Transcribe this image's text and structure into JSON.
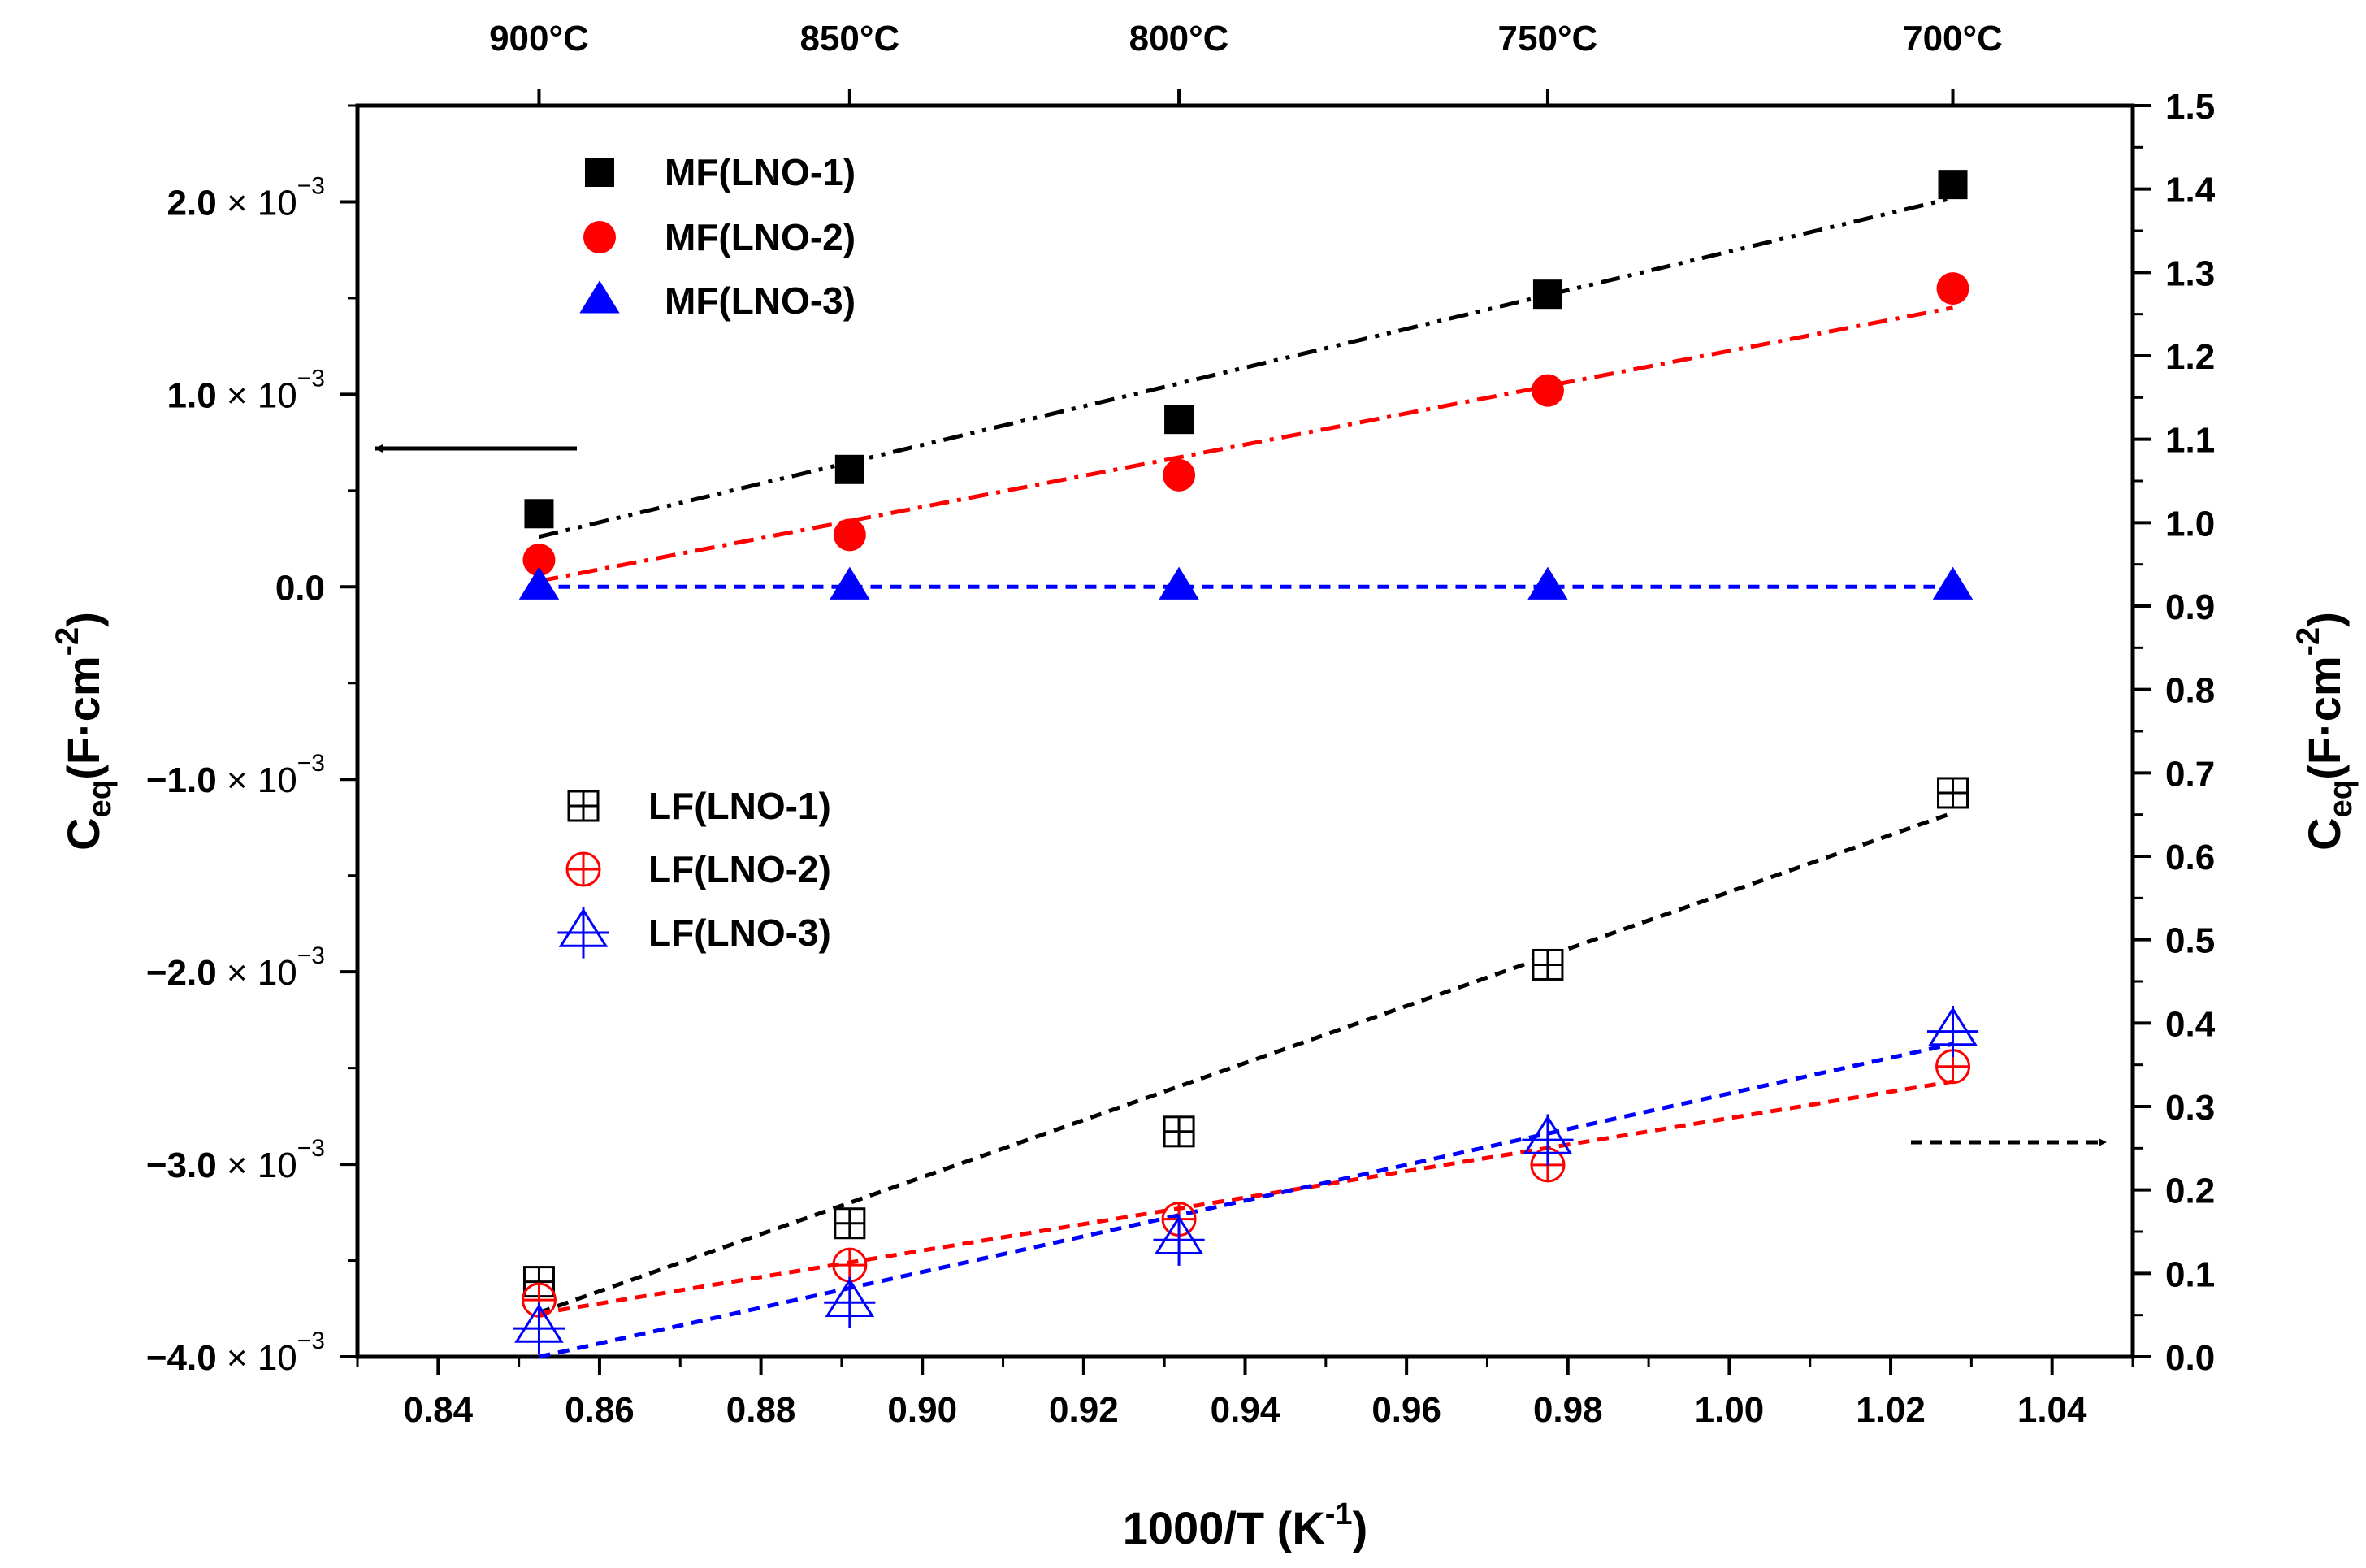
{
  "chart_data": {
    "type": "scatter",
    "x_axis": {
      "label": "1000/T",
      "unit_base": "K",
      "unit_exp": "-1",
      "range": [
        0.83,
        1.05
      ],
      "ticks": [
        "0.84",
        "0.86",
        "0.88",
        "0.90",
        "0.92",
        "0.94",
        "0.96",
        "0.98",
        "1.00",
        "1.02",
        "1.04"
      ]
    },
    "top_axis": {
      "ticks": [
        {
          "x": 0.8525,
          "label": "900°C"
        },
        {
          "x": 0.891,
          "label": "850°C"
        },
        {
          "x": 0.9318,
          "label": "800°C"
        },
        {
          "x": 0.9775,
          "label": "750°C"
        },
        {
          "x": 1.0277,
          "label": "700°C"
        }
      ]
    },
    "left_axis": {
      "label_main": "C",
      "label_sub": "eq",
      "label_unit": "(F·cm",
      "label_exp": "-2",
      "label_close": ")",
      "range": [
        -0.004,
        0.0025
      ],
      "ticks": [
        {
          "value": 0.002,
          "mantissa": "2.0",
          "times": "×",
          "base": "10",
          "exp": "−3"
        },
        {
          "value": 0.001,
          "mantissa": "1.0",
          "times": "×",
          "base": "10",
          "exp": "−3"
        },
        {
          "value": 0.0,
          "mantissa": "0.0"
        },
        {
          "value": -0.001,
          "mantissa": "−1.0",
          "times": "×",
          "base": "10",
          "exp": "−3"
        },
        {
          "value": -0.002,
          "mantissa": "−2.0",
          "times": "×",
          "base": "10",
          "exp": "−3"
        },
        {
          "value": -0.003,
          "mantissa": "−3.0",
          "times": "×",
          "base": "10",
          "exp": "−3"
        },
        {
          "value": -0.004,
          "mantissa": "−4.0",
          "times": "×",
          "base": "10",
          "exp": "−3"
        }
      ]
    },
    "right_axis": {
      "label_main": "C",
      "label_sub": "eq",
      "label_unit": "(F·cm",
      "label_exp": "-2",
      "label_close": ")",
      "range": [
        0.0,
        1.5
      ],
      "ticks": [
        "0.0",
        "0.1",
        "0.2",
        "0.3",
        "0.4",
        "0.5",
        "0.6",
        "0.7",
        "0.8",
        "0.9",
        "1.0",
        "1.1",
        "1.2",
        "1.3",
        "1.4",
        "1.5"
      ]
    },
    "series": [
      {
        "name": "MF(LNO-1)",
        "axis": "left",
        "marker": "square",
        "filled": true,
        "color": "#000000",
        "line": "dash-dot-dot",
        "x": [
          0.8525,
          0.891,
          0.9318,
          0.9775,
          1.0277
        ],
        "y": [
          0.00038,
          0.00061,
          0.00087,
          0.00152,
          0.00209
        ],
        "fit": [
          [
            0.8525,
            0.00026
          ],
          [
            1.0277,
            0.00202
          ]
        ]
      },
      {
        "name": "MF(LNO-2)",
        "axis": "left",
        "marker": "circle",
        "filled": true,
        "color": "#ff0000",
        "line": "dash-dot",
        "x": [
          0.8525,
          0.891,
          0.9318,
          0.9775,
          1.0277
        ],
        "y": [
          0.00014,
          0.00027,
          0.00058,
          0.00102,
          0.00155
        ],
        "fit": [
          [
            0.8525,
            3e-05
          ],
          [
            1.0277,
            0.00145
          ]
        ]
      },
      {
        "name": "MF(LNO-3)",
        "axis": "left",
        "marker": "triangle",
        "filled": true,
        "color": "#0000ff",
        "line": "dash",
        "x": [
          0.8525,
          0.891,
          0.9318,
          0.9775,
          1.0277
        ],
        "y": [
          0.0,
          0.0,
          0.0,
          0.0,
          0.0
        ],
        "fit": [
          [
            0.8525,
            0.0
          ],
          [
            1.0277,
            0.0
          ]
        ]
      },
      {
        "name": "LF(LNO-1)",
        "axis": "right",
        "marker": "square-cross",
        "filled": false,
        "color": "#000000",
        "line": "dash",
        "x": [
          0.8525,
          0.891,
          0.9318,
          0.9775,
          1.0277
        ],
        "y": [
          0.09,
          0.16,
          0.27,
          0.47,
          0.676
        ],
        "fit": [
          [
            0.8525,
            0.053
          ],
          [
            1.0277,
            0.652
          ]
        ]
      },
      {
        "name": "LF(LNO-2)",
        "axis": "right",
        "marker": "circle-cross",
        "filled": false,
        "color": "#ff0000",
        "line": "dash",
        "x": [
          0.8525,
          0.891,
          0.9318,
          0.9775,
          1.0277
        ],
        "y": [
          0.068,
          0.11,
          0.165,
          0.23,
          0.348
        ],
        "fit": [
          [
            0.8525,
            0.052
          ],
          [
            1.0277,
            0.33
          ]
        ]
      },
      {
        "name": "LF(LNO-3)",
        "axis": "right",
        "marker": "triangle-cross",
        "filled": false,
        "color": "#0000ff",
        "line": "dash",
        "x": [
          0.8525,
          0.891,
          0.9318,
          0.9775,
          1.0277
        ],
        "y": [
          0.034,
          0.065,
          0.14,
          0.26,
          0.39
        ],
        "fit": [
          [
            0.8525,
            0.0
          ],
          [
            1.0277,
            0.375
          ]
        ]
      }
    ],
    "annotations": [
      {
        "type": "arrow",
        "style": "solid",
        "meaning": "points to left axis"
      },
      {
        "type": "arrow",
        "style": "dashed",
        "meaning": "points to right axis"
      }
    ]
  }
}
